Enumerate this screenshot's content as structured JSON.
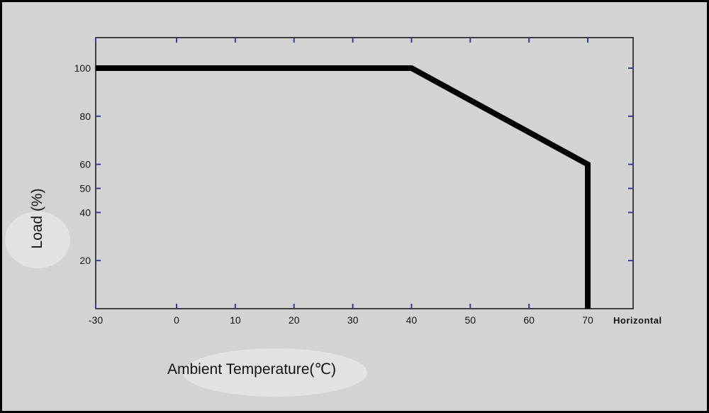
{
  "chart_data": {
    "type": "line",
    "xlabel": "Ambient Temperature(℃)",
    "ylabel": "Load (%)",
    "x_end_label": "Horizontal",
    "x_ticks": [
      -30,
      0,
      10,
      20,
      30,
      40,
      50,
      60,
      70
    ],
    "y_ticks": [
      20,
      40,
      50,
      60,
      80,
      100
    ],
    "xlim": [
      -30,
      73
    ],
    "ylim": [
      0,
      110
    ],
    "series": [
      {
        "x": [
          -30,
          40,
          70,
          70
        ],
        "y": [
          100,
          100,
          60,
          0
        ]
      }
    ],
    "colors": {
      "background": "#d3d3d3",
      "line": "#000000",
      "axis": "#111111",
      "tick": "#3a3aa0"
    }
  }
}
